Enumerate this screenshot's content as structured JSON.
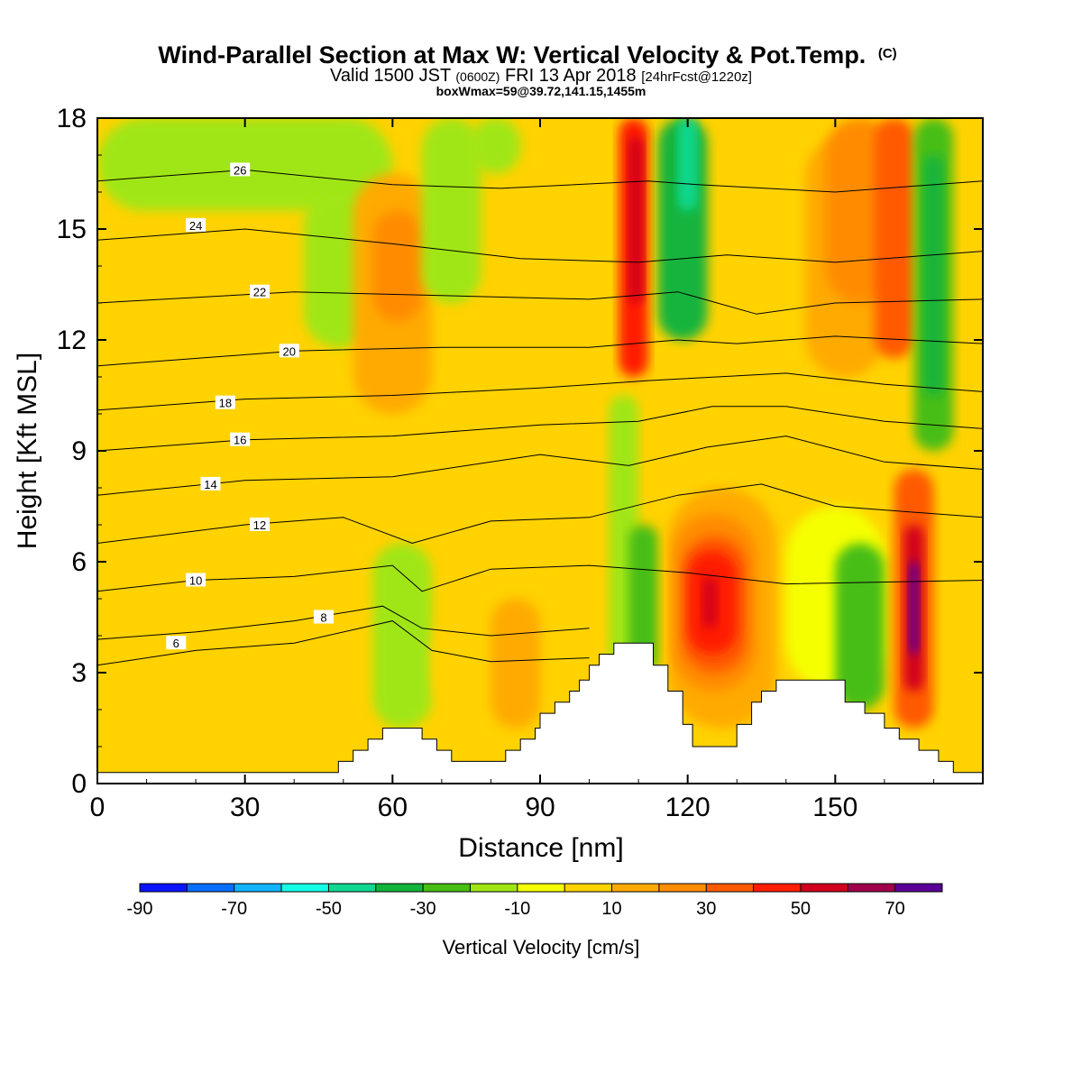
{
  "chart_data": {
    "type": "heatmap",
    "title": "Wind-Parallel Section at Max W: Vertical Velocity & Pot.Temp.",
    "title_mark": "(C)",
    "subtitle": {
      "prefix": "Valid 1500 JST",
      "utc": "(0600Z)",
      "date": "FRI 13 Apr 2018",
      "forecast": "[24hrFcst@1220z]"
    },
    "subtitle2": "boxWmax=59@39.72,141.15,1455m",
    "xlabel": "Distance [nm]",
    "ylabel": "Height [Kft MSL]",
    "xlim": [
      0,
      180
    ],
    "ylim": [
      0,
      18
    ],
    "xticks": [
      0,
      30,
      60,
      90,
      120,
      150
    ],
    "yticks": [
      0,
      3,
      6,
      9,
      12,
      15,
      18
    ],
    "grid": false,
    "colorbar": {
      "label": "Vertical Velocity [cm/s]",
      "levels": [
        -90,
        -80,
        -70,
        -60,
        -50,
        -40,
        -30,
        -20,
        -10,
        0,
        10,
        20,
        30,
        40,
        50,
        60,
        70,
        80
      ],
      "tick_labels": [
        -90,
        -70,
        -50,
        -30,
        -10,
        10,
        30,
        50,
        70
      ],
      "colors": [
        "#0a14ff",
        "#0a6eff",
        "#12b4ff",
        "#14ffe6",
        "#10d890",
        "#12b43c",
        "#46be14",
        "#a0e614",
        "#f5ff00",
        "#ffd200",
        "#ffaa00",
        "#ff8c00",
        "#ff5a00",
        "#ff1e00",
        "#d2001e",
        "#a0004b",
        "#5a0096"
      ]
    },
    "velocity_cells": [
      {
        "x": [
          0,
          180
        ],
        "y": [
          0,
          18
        ],
        "w": 0
      },
      {
        "x": [
          0,
          60
        ],
        "y": [
          15.5,
          18
        ],
        "w": -15
      },
      {
        "x": [
          42,
          56
        ],
        "y": [
          11.8,
          16
        ],
        "w": -15
      },
      {
        "x": [
          18,
          46
        ],
        "y": [
          2,
          8
        ],
        "w": 5
      },
      {
        "x": [
          52,
          68
        ],
        "y": [
          10,
          16.5
        ],
        "w": 10
      },
      {
        "x": [
          56,
          66
        ],
        "y": [
          12.5,
          15.5
        ],
        "w": 20
      },
      {
        "x": [
          66,
          78
        ],
        "y": [
          13,
          18
        ],
        "w": -15
      },
      {
        "x": [
          76,
          86
        ],
        "y": [
          16.5,
          18
        ],
        "w": -15
      },
      {
        "x": [
          56,
          68
        ],
        "y": [
          1.5,
          6.5
        ],
        "w": -15
      },
      {
        "x": [
          68,
          104
        ],
        "y": [
          1,
          5.5
        ],
        "w": 5
      },
      {
        "x": [
          80,
          90
        ],
        "y": [
          1.5,
          5
        ],
        "w": 15
      },
      {
        "x": [
          106,
          112
        ],
        "y": [
          11,
          18
        ],
        "w": 40
      },
      {
        "x": [
          108,
          111
        ],
        "y": [
          13,
          17.5
        ],
        "w": 55
      },
      {
        "x": [
          104,
          110
        ],
        "y": [
          3,
          10.5
        ],
        "w": -15
      },
      {
        "x": [
          108,
          114
        ],
        "y": [
          3,
          7
        ],
        "w": -25
      },
      {
        "x": [
          114,
          124
        ],
        "y": [
          12,
          18
        ],
        "w": -35
      },
      {
        "x": [
          118,
          122
        ],
        "y": [
          15.5,
          18
        ],
        "w": -50
      },
      {
        "x": [
          116,
          138
        ],
        "y": [
          1.5,
          8
        ],
        "w": 15
      },
      {
        "x": [
          117,
          134
        ],
        "y": [
          2.5,
          7.3
        ],
        "w": 25
      },
      {
        "x": [
          119,
          132
        ],
        "y": [
          3,
          6.7
        ],
        "w": 35
      },
      {
        "x": [
          120,
          130
        ],
        "y": [
          3.5,
          6.3
        ],
        "w": 45
      },
      {
        "x": [
          123,
          126
        ],
        "y": [
          4.2,
          5.6
        ],
        "w": 55
      },
      {
        "x": [
          128,
          142
        ],
        "y": [
          10.5,
          18
        ],
        "w": 5
      },
      {
        "x": [
          144,
          160
        ],
        "y": [
          11,
          17.5
        ],
        "w": 10
      },
      {
        "x": [
          148,
          162
        ],
        "y": [
          13,
          18
        ],
        "w": 20
      },
      {
        "x": [
          158,
          166
        ],
        "y": [
          11.5,
          18
        ],
        "w": 35
      },
      {
        "x": [
          166,
          174
        ],
        "y": [
          9,
          18
        ],
        "w": -25
      },
      {
        "x": [
          168,
          172
        ],
        "y": [
          10.5,
          17
        ],
        "w": -35
      },
      {
        "x": [
          140,
          160
        ],
        "y": [
          2.5,
          7.5
        ],
        "w": -10
      },
      {
        "x": [
          150,
          160
        ],
        "y": [
          2,
          6.5
        ],
        "w": -25
      },
      {
        "x": [
          162,
          170
        ],
        "y": [
          1.5,
          8.5
        ],
        "w": 30
      },
      {
        "x": [
          164,
          168
        ],
        "y": [
          2.5,
          7
        ],
        "w": 55
      },
      {
        "x": [
          165,
          167
        ],
        "y": [
          3.5,
          6
        ],
        "w": 72
      }
    ],
    "potential_temperature_isolines": [
      {
        "label": "6",
        "label_x": 16,
        "label_y": 3.8,
        "points": [
          [
            0,
            3.2
          ],
          [
            20,
            3.6
          ],
          [
            40,
            3.8
          ],
          [
            60,
            4.4
          ],
          [
            68,
            3.6
          ],
          [
            80,
            3.3
          ],
          [
            100,
            3.4
          ]
        ]
      },
      {
        "label": "8",
        "label_x": 46,
        "label_y": 4.5,
        "points": [
          [
            0,
            3.9
          ],
          [
            20,
            4.1
          ],
          [
            40,
            4.4
          ],
          [
            58,
            4.8
          ],
          [
            66,
            4.2
          ],
          [
            80,
            4.0
          ],
          [
            100,
            4.2
          ]
        ]
      },
      {
        "label": "10",
        "label_x": 20,
        "label_y": 5.5,
        "points": [
          [
            0,
            5.2
          ],
          [
            20,
            5.5
          ],
          [
            40,
            5.6
          ],
          [
            60,
            5.9
          ],
          [
            66,
            5.2
          ],
          [
            80,
            5.8
          ],
          [
            100,
            5.9
          ],
          [
            120,
            5.7
          ],
          [
            140,
            5.4
          ],
          [
            180,
            5.5
          ]
        ]
      },
      {
        "label": "12",
        "label_x": 33,
        "label_y": 7.0,
        "points": [
          [
            0,
            6.5
          ],
          [
            30,
            7.0
          ],
          [
            50,
            7.2
          ],
          [
            64,
            6.5
          ],
          [
            80,
            7.1
          ],
          [
            100,
            7.2
          ],
          [
            118,
            7.8
          ],
          [
            135,
            8.1
          ],
          [
            150,
            7.5
          ],
          [
            180,
            7.2
          ]
        ]
      },
      {
        "label": "14",
        "label_x": 23,
        "label_y": 8.1,
        "points": [
          [
            0,
            7.8
          ],
          [
            30,
            8.2
          ],
          [
            60,
            8.3
          ],
          [
            90,
            8.9
          ],
          [
            108,
            8.6
          ],
          [
            124,
            9.1
          ],
          [
            140,
            9.4
          ],
          [
            160,
            8.7
          ],
          [
            180,
            8.5
          ]
        ]
      },
      {
        "label": "16",
        "label_x": 29,
        "label_y": 9.3,
        "points": [
          [
            0,
            9.0
          ],
          [
            30,
            9.3
          ],
          [
            60,
            9.4
          ],
          [
            90,
            9.7
          ],
          [
            110,
            9.8
          ],
          [
            125,
            10.2
          ],
          [
            140,
            10.2
          ],
          [
            160,
            9.8
          ],
          [
            180,
            9.6
          ]
        ]
      },
      {
        "label": "18",
        "label_x": 26,
        "label_y": 10.3,
        "points": [
          [
            0,
            10.1
          ],
          [
            30,
            10.4
          ],
          [
            60,
            10.5
          ],
          [
            90,
            10.7
          ],
          [
            112,
            10.9
          ],
          [
            126,
            11.0
          ],
          [
            140,
            11.1
          ],
          [
            160,
            10.8
          ],
          [
            180,
            10.6
          ]
        ]
      },
      {
        "label": "20",
        "label_x": 39,
        "label_y": 11.7,
        "points": [
          [
            0,
            11.3
          ],
          [
            40,
            11.7
          ],
          [
            70,
            11.8
          ],
          [
            100,
            11.8
          ],
          [
            118,
            12.0
          ],
          [
            130,
            11.9
          ],
          [
            150,
            12.1
          ],
          [
            180,
            11.9
          ]
        ]
      },
      {
        "label": "22",
        "label_x": 33,
        "label_y": 13.3,
        "points": [
          [
            0,
            13.0
          ],
          [
            40,
            13.3
          ],
          [
            70,
            13.2
          ],
          [
            100,
            13.1
          ],
          [
            118,
            13.3
          ],
          [
            134,
            12.7
          ],
          [
            150,
            13.0
          ],
          [
            180,
            13.1
          ]
        ]
      },
      {
        "label": "24",
        "label_x": 20,
        "label_y": 15.1,
        "points": [
          [
            0,
            14.7
          ],
          [
            30,
            15.0
          ],
          [
            60,
            14.6
          ],
          [
            86,
            14.2
          ],
          [
            110,
            14.1
          ],
          [
            128,
            14.3
          ],
          [
            150,
            14.1
          ],
          [
            180,
            14.4
          ]
        ]
      },
      {
        "label": "26",
        "label_x": 29,
        "label_y": 16.6,
        "points": [
          [
            0,
            16.3
          ],
          [
            30,
            16.6
          ],
          [
            60,
            16.2
          ],
          [
            82,
            16.1
          ],
          [
            112,
            16.3
          ],
          [
            122,
            16.2
          ],
          [
            150,
            16.0
          ],
          [
            180,
            16.3
          ]
        ]
      }
    ],
    "terrain": [
      [
        0,
        0.3
      ],
      [
        48,
        0.3
      ],
      [
        49,
        0.6
      ],
      [
        52,
        0.9
      ],
      [
        55,
        1.2
      ],
      [
        58,
        1.5
      ],
      [
        64,
        1.5
      ],
      [
        66,
        1.2
      ],
      [
        69,
        0.9
      ],
      [
        72,
        0.6
      ],
      [
        81,
        0.6
      ],
      [
        83,
        0.9
      ],
      [
        86,
        1.2
      ],
      [
        89,
        1.5
      ],
      [
        90,
        1.9
      ],
      [
        93,
        2.2
      ],
      [
        96,
        2.5
      ],
      [
        98,
        2.8
      ],
      [
        100,
        3.2
      ],
      [
        102,
        3.5
      ],
      [
        105,
        3.8
      ],
      [
        111,
        3.8
      ],
      [
        113,
        3.2
      ],
      [
        116,
        2.5
      ],
      [
        119,
        1.6
      ],
      [
        121,
        1.0
      ],
      [
        127,
        1.0
      ],
      [
        130,
        1.6
      ],
      [
        133,
        2.2
      ],
      [
        135,
        2.5
      ],
      [
        138,
        2.8
      ],
      [
        147,
        2.8
      ],
      [
        152,
        2.2
      ],
      [
        156,
        1.9
      ],
      [
        160,
        1.5
      ],
      [
        163,
        1.2
      ],
      [
        167,
        0.9
      ],
      [
        171,
        0.6
      ],
      [
        174,
        0.3
      ],
      [
        180,
        0.3
      ]
    ]
  }
}
